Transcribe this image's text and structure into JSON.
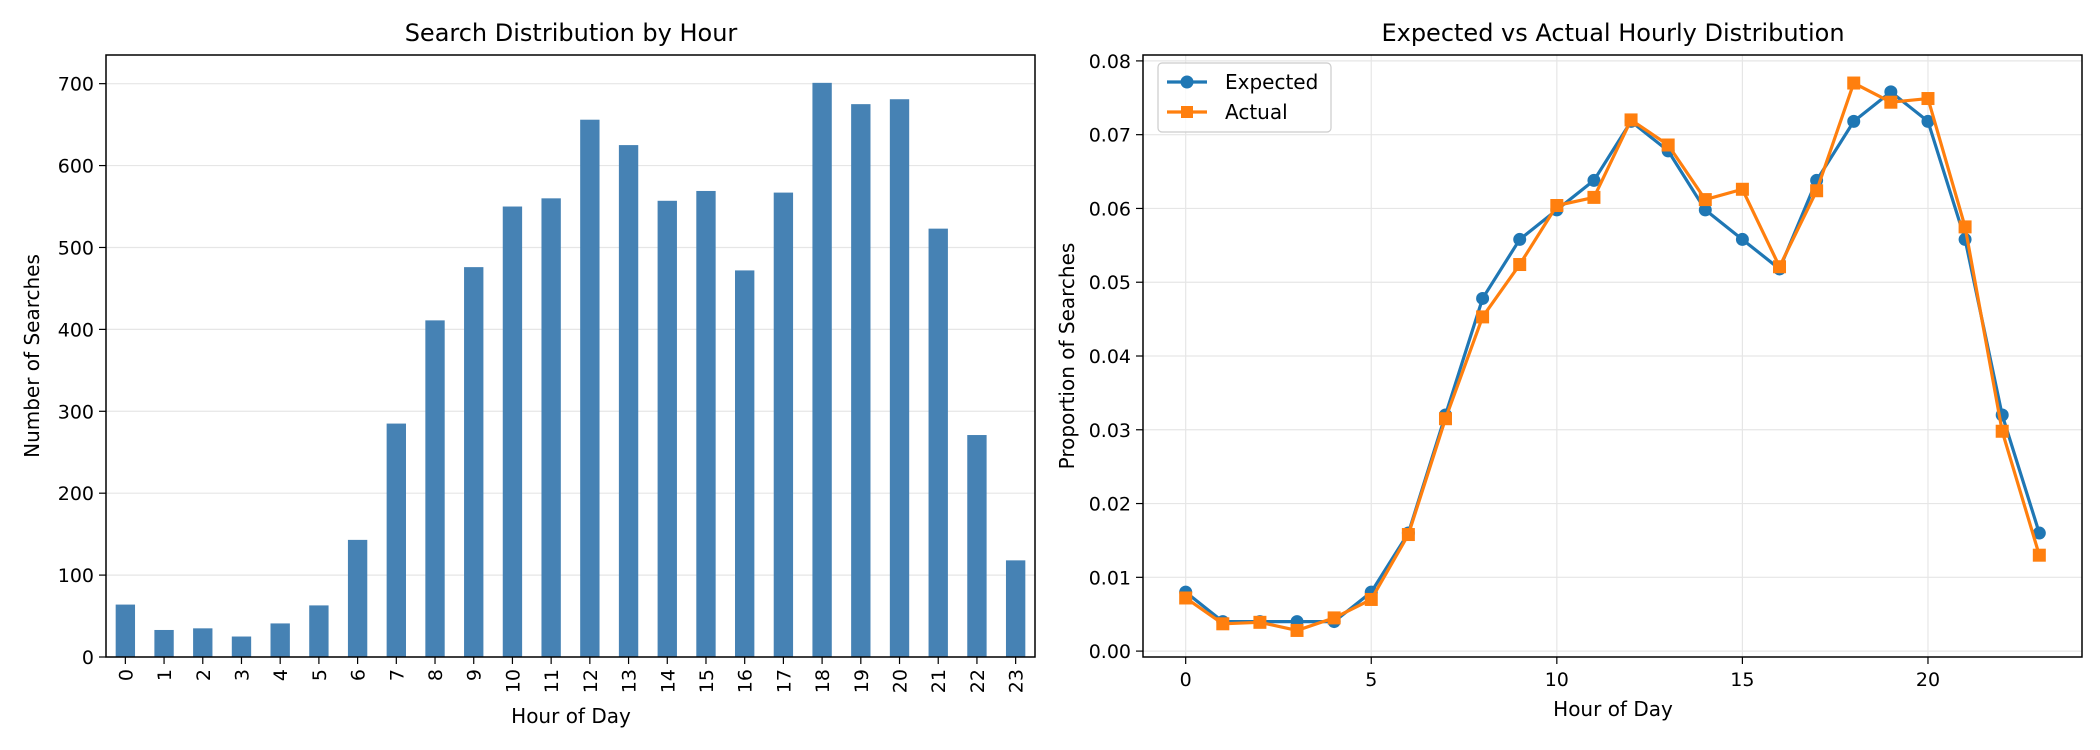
{
  "chart_data": [
    {
      "type": "bar",
      "title": "Search Distribution by Hour",
      "xlabel": "Hour of Day",
      "ylabel": "Number of Searches",
      "categories": [
        "0",
        "1",
        "2",
        "3",
        "4",
        "5",
        "6",
        "7",
        "8",
        "9",
        "10",
        "11",
        "12",
        "13",
        "14",
        "15",
        "16",
        "17",
        "18",
        "19",
        "20",
        "21",
        "22",
        "23"
      ],
      "values": [
        64,
        33,
        35,
        25,
        41,
        63,
        143,
        285,
        411,
        476,
        550,
        560,
        656,
        625,
        557,
        569,
        472,
        567,
        701,
        675,
        681,
        523,
        271,
        118
      ],
      "ylim": [
        0,
        735
      ],
      "yticks": [
        0,
        100,
        200,
        300,
        400,
        500,
        600,
        700
      ],
      "color": "#4682b4",
      "grid": "y"
    },
    {
      "type": "line",
      "title": "Expected vs Actual Hourly Distribution",
      "xlabel": "Hour of Day",
      "ylabel": "Proportion of Searches",
      "x": [
        0,
        1,
        2,
        3,
        4,
        5,
        6,
        7,
        8,
        9,
        10,
        11,
        12,
        13,
        14,
        15,
        16,
        17,
        18,
        19,
        20,
        21,
        22,
        23
      ],
      "xlim": [
        -1.15,
        24.15
      ],
      "xticks": [
        0,
        5,
        10,
        15,
        20
      ],
      "ylim": [
        -0.0008,
        0.0808
      ],
      "yticks": [
        0.0,
        0.01,
        0.02,
        0.03,
        0.04,
        0.05,
        0.06,
        0.07,
        0.08
      ],
      "ytick_labels": [
        "0.00",
        "0.01",
        "0.02",
        "0.03",
        "0.04",
        "0.05",
        "0.06",
        "0.07",
        "0.08"
      ],
      "series": [
        {
          "name": "Expected",
          "color": "#1f77b4",
          "marker": "circle",
          "values": [
            0.008,
            0.004,
            0.004,
            0.004,
            0.004,
            0.008,
            0.016,
            0.032,
            0.0478,
            0.0558,
            0.0598,
            0.0638,
            0.0718,
            0.0678,
            0.0598,
            0.0558,
            0.0518,
            0.0638,
            0.0718,
            0.0758,
            0.0718,
            0.0558,
            0.032,
            0.016
          ]
        },
        {
          "name": "Actual",
          "color": "#ff7f0e",
          "marker": "square",
          "values": [
            0.0072,
            0.0037,
            0.0039,
            0.0028,
            0.0045,
            0.007,
            0.0158,
            0.0315,
            0.0453,
            0.0524,
            0.0604,
            0.0615,
            0.072,
            0.0686,
            0.0612,
            0.0626,
            0.0521,
            0.0624,
            0.077,
            0.0744,
            0.0749,
            0.0575,
            0.0298,
            0.013
          ]
        }
      ],
      "legend": "top-left",
      "grid": "both"
    }
  ]
}
